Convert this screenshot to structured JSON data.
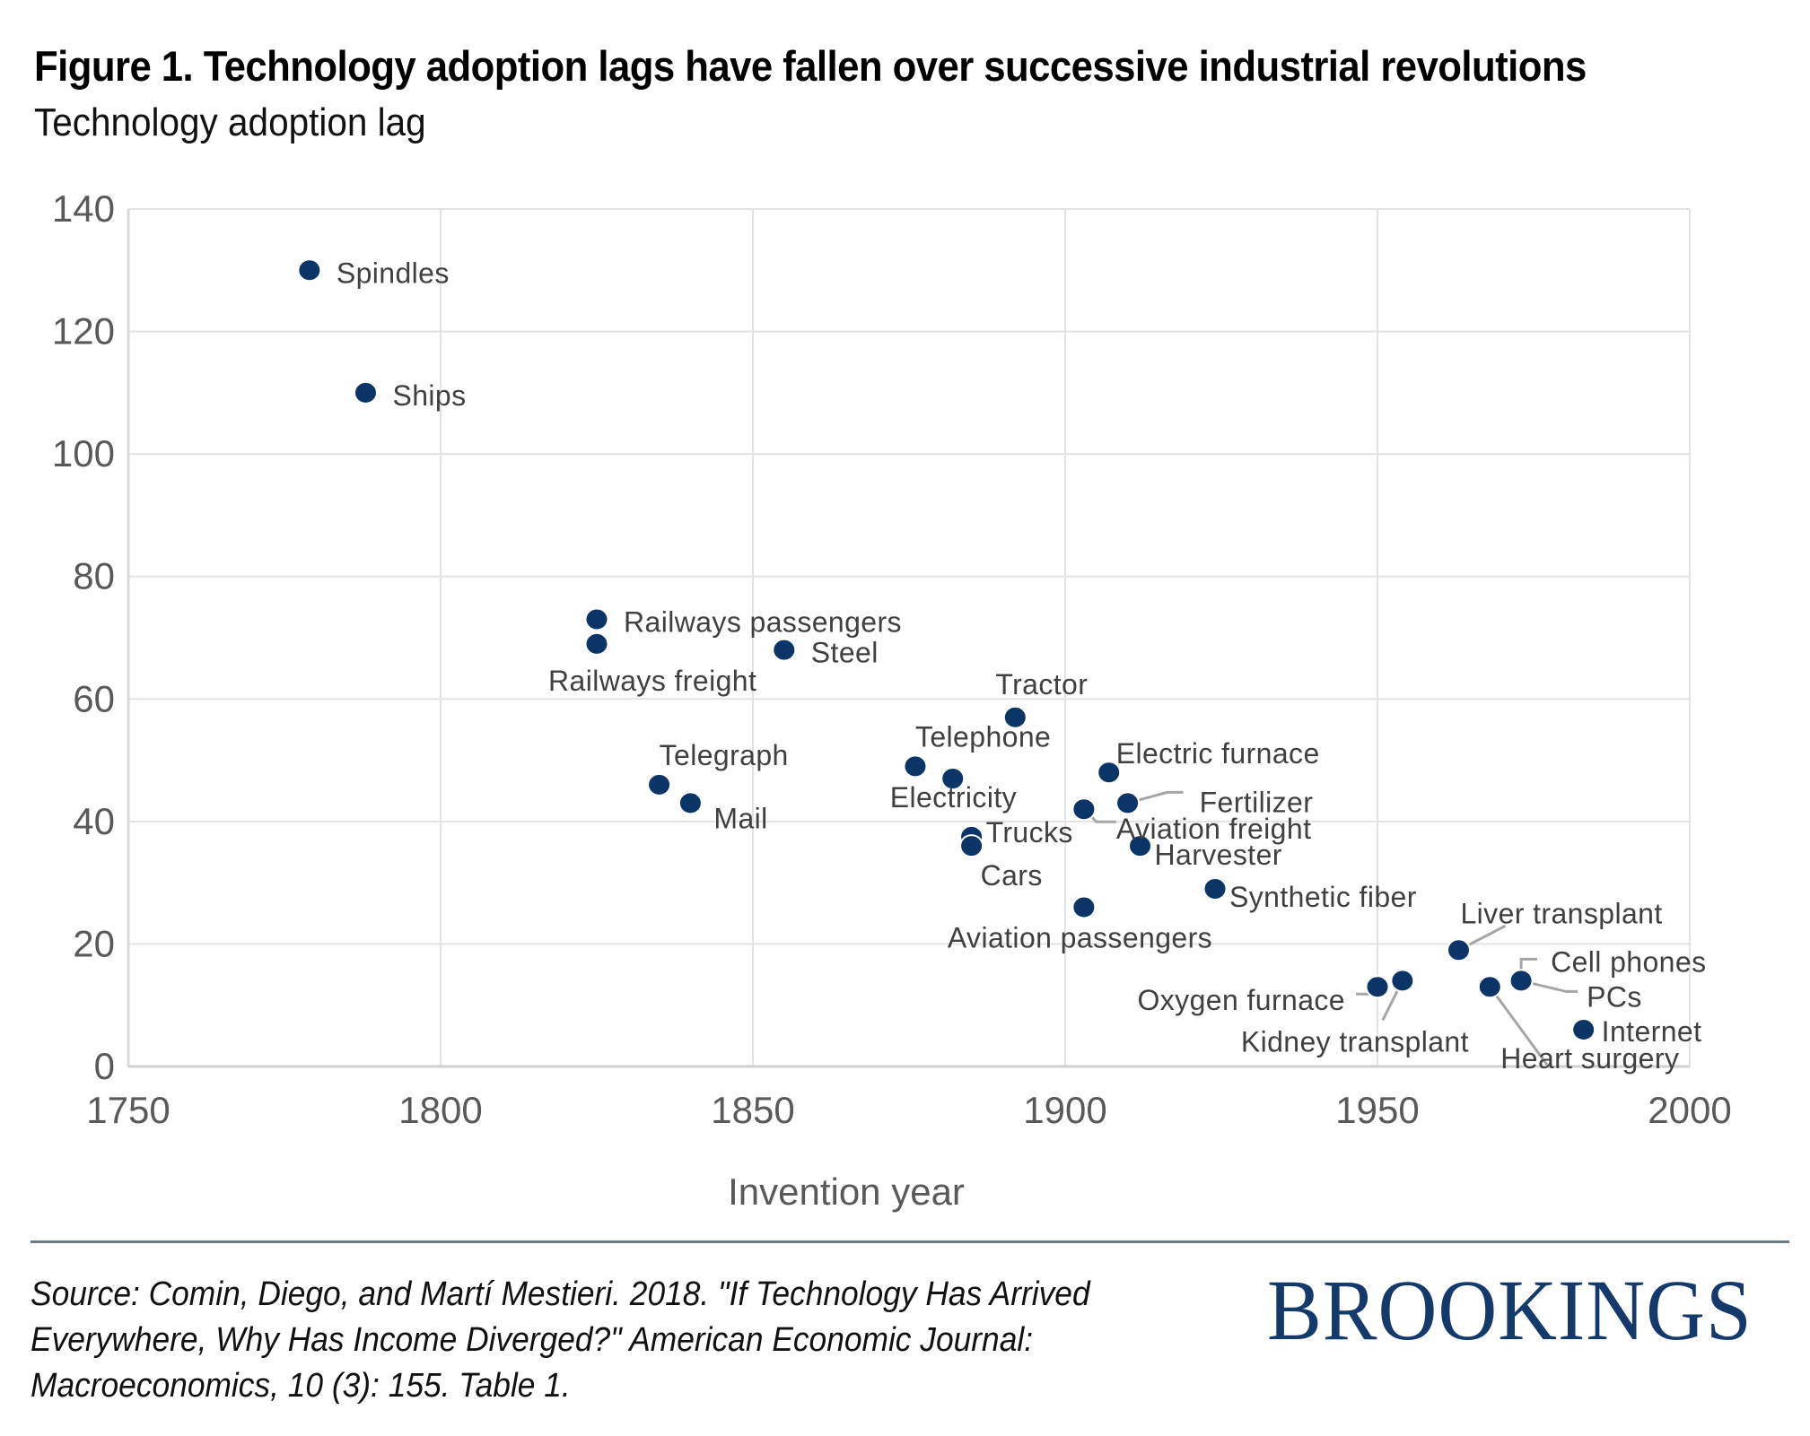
{
  "header": {
    "title": "Figure 1. Technology adoption lags have fallen over successive industrial revolutions",
    "subtitle": "Technology adoption lag"
  },
  "footer": {
    "source": "Source: Comin, Diego, and Martí Mestieri. 2018. \"If Technology Has Arrived Everywhere, Why Has Income Diverged?\" American Economic Journal: Macroeconomics, 10 (3): 155. Table 1.",
    "logo": "BROOKINGS"
  },
  "colors": {
    "point": "#0b3566",
    "logo": "#14396b",
    "grid": "#e3e3e3",
    "axis_text": "#595959",
    "label_text": "#404040",
    "leader": "#a6a6a6"
  },
  "chart_data": {
    "type": "scatter",
    "title": "Figure 1. Technology adoption lags have fallen over successive industrial revolutions",
    "subtitle": "Technology adoption lag",
    "xlabel": "Invention  year",
    "ylabel": "Technology adoption lag",
    "xlim": [
      1750,
      2000
    ],
    "ylim": [
      0,
      140
    ],
    "xticks": [
      1750,
      1800,
      1850,
      1900,
      1950,
      2000
    ],
    "yticks": [
      0,
      20,
      40,
      60,
      80,
      100,
      120,
      140
    ],
    "grid": true,
    "legend": "none",
    "points": [
      {
        "label": "Spindles",
        "x": 1779,
        "y": 130
      },
      {
        "label": "Ships",
        "x": 1788,
        "y": 110
      },
      {
        "label": "Railways passengers",
        "x": 1825,
        "y": 73
      },
      {
        "label": "Railways freight",
        "x": 1825,
        "y": 69
      },
      {
        "label": "Steel",
        "x": 1855,
        "y": 68
      },
      {
        "label": "Telegraph",
        "x": 1835,
        "y": 46
      },
      {
        "label": "Mail",
        "x": 1840,
        "y": 43
      },
      {
        "label": "Telephone",
        "x": 1876,
        "y": 49
      },
      {
        "label": "Electricity",
        "x": 1882,
        "y": 47
      },
      {
        "label": "Trucks",
        "x": 1885,
        "y": 37.5
      },
      {
        "label": "Cars",
        "x": 1885,
        "y": 36
      },
      {
        "label": "Tractor",
        "x": 1892,
        "y": 57
      },
      {
        "label": "Electric  furnace",
        "x": 1907,
        "y": 48
      },
      {
        "label": "Fertilizer",
        "x": 1910,
        "y": 43
      },
      {
        "label": "Aviation freight",
        "x": 1903,
        "y": 42
      },
      {
        "label": "Harvester",
        "x": 1912,
        "y": 36
      },
      {
        "label": "Aviation passengers",
        "x": 1903,
        "y": 26
      },
      {
        "label": "Synthetic fiber",
        "x": 1924,
        "y": 29
      },
      {
        "label": "Liver transplant",
        "x": 1963,
        "y": 19
      },
      {
        "label": "Oxygen furnace",
        "x": 1950,
        "y": 13
      },
      {
        "label": "Kidney transplant",
        "x": 1954,
        "y": 14
      },
      {
        "label": "Heart surgery",
        "x": 1968,
        "y": 13
      },
      {
        "label": "Cell phones",
        "x": 1973,
        "y": 14
      },
      {
        "label": "PCs",
        "x": 1973,
        "y": 14
      },
      {
        "label": "Internet",
        "x": 1983,
        "y": 6
      }
    ]
  }
}
